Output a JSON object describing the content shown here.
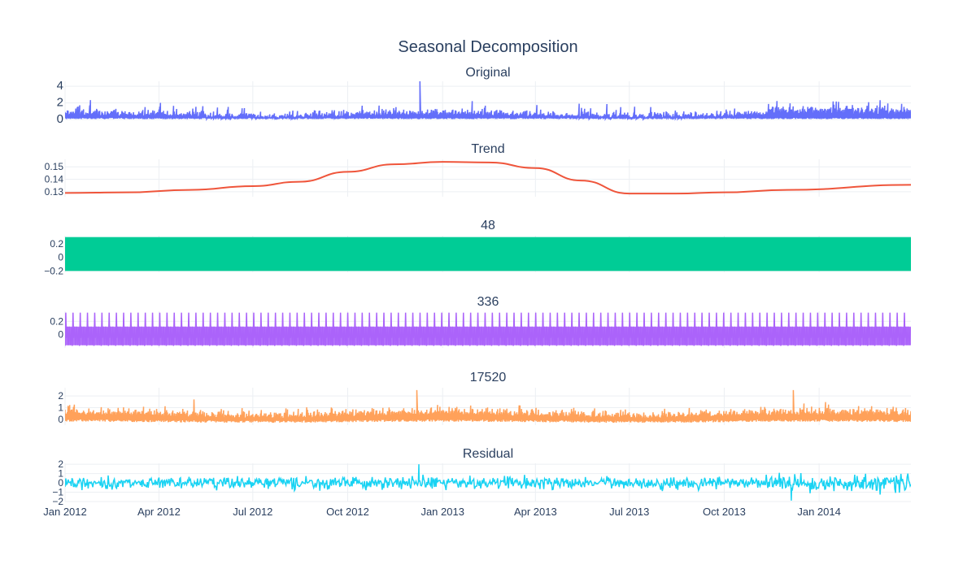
{
  "chart_data": {
    "type": "line",
    "title": "Seasonal Decomposition",
    "x_range": [
      "2012-01-01",
      "2014-03-31"
    ],
    "x_ticks": [
      "Jan 2012",
      "Apr 2012",
      "Jul 2012",
      "Oct 2012",
      "Jan 2013",
      "Apr 2013",
      "Jul 2013",
      "Oct 2013",
      "Jan 2014"
    ],
    "x_tick_dates": [
      "2012-01-01",
      "2012-04-01",
      "2012-07-01",
      "2012-10-01",
      "2013-01-01",
      "2013-04-01",
      "2013-07-01",
      "2013-10-01",
      "2014-01-01"
    ],
    "grid": true,
    "panels": [
      {
        "title": "Original",
        "color": "#636efa",
        "ylim": [
          0,
          4.6
        ],
        "yticks": [
          "0",
          "2",
          "4"
        ],
        "ytick_values": [
          0,
          2,
          4
        ],
        "y_approx": {
          "typical_range": [
            0.1,
            1.5
          ],
          "peak": 4.6,
          "peak_date": "2012-12-10"
        }
      },
      {
        "title": "Trend",
        "color": "#ef553b",
        "ylim": [
          0.126,
          0.156
        ],
        "yticks": [
          "0.13",
          "0.14",
          "0.15"
        ],
        "ytick_values": [
          0.13,
          0.14,
          0.15
        ],
        "series": {
          "x": [
            "2012-01-01",
            "2012-03-01",
            "2012-05-01",
            "2012-07-01",
            "2012-08-15",
            "2012-10-01",
            "2012-11-15",
            "2013-01-01",
            "2013-02-15",
            "2013-04-01",
            "2013-05-15",
            "2013-07-01",
            "2013-08-15",
            "2013-10-01",
            "2013-12-01",
            "2014-03-31"
          ],
          "y": [
            0.129,
            0.1295,
            0.1315,
            0.1345,
            0.138,
            0.146,
            0.152,
            0.154,
            0.1535,
            0.149,
            0.139,
            0.1285,
            0.1285,
            0.1295,
            0.1315,
            0.1355
          ]
        }
      },
      {
        "title": "48",
        "color": "#00cc96",
        "ylim": [
          -0.22,
          0.32
        ],
        "yticks": [
          "0.2",
          "0",
          "−0.2"
        ],
        "ytick_values": [
          0.2,
          0,
          -0.2
        ],
        "y_approx": {
          "min": -0.2,
          "max": 0.3
        }
      },
      {
        "title": "336",
        "color": "#ab63fa",
        "ylim": [
          -0.2,
          0.35
        ],
        "yticks": [
          "0.2",
          "0"
        ],
        "ytick_values": [
          0.2,
          0
        ],
        "y_approx": {
          "min": -0.17,
          "max": 0.33
        }
      },
      {
        "title": "17520",
        "color": "#ffa15a",
        "ylim": [
          -0.5,
          2.7
        ],
        "yticks": [
          "2",
          "1",
          "0"
        ],
        "ytick_values": [
          2,
          1,
          0
        ],
        "y_approx": {
          "typical_range": [
            -0.3,
            1.0
          ],
          "peaks": [
            {
              "date": "2012-05-05",
              "y": 1.7
            },
            {
              "date": "2012-12-07",
              "y": 2.5
            },
            {
              "date": "2013-12-07",
              "y": 2.5
            }
          ]
        }
      },
      {
        "title": "Residual",
        "color": "#19d3f3",
        "ylim": [
          -2,
          2.1
        ],
        "yticks": [
          "2",
          "1",
          "0",
          "−1",
          "−2"
        ],
        "ytick_values": [
          2,
          1,
          0,
          -1,
          -2
        ],
        "y_approx": {
          "typical_range": [
            -0.8,
            1.0
          ],
          "peak": 2.0,
          "low": -1.9
        }
      }
    ]
  }
}
